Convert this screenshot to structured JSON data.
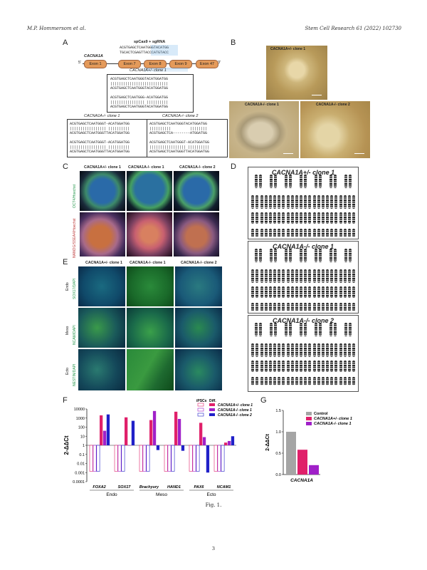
{
  "header": {
    "left": "M.P. Hommersom et al.",
    "right": "Stem Cell Research 61 (2022) 102730"
  },
  "panel_letters": {
    "a": "A",
    "b": "B",
    "c": "C",
    "d": "D",
    "e": "E",
    "f": "F",
    "g": "G"
  },
  "panel_a": {
    "sgrna_label": "spCas9 + sgRNA",
    "gene_label": "CACNA1A",
    "sgrna_seq_top": "ACGTGAGCTCAATGGGTACATGG",
    "sgrna_seq_bottom": "TGCACTCGAGTTACCCATGTACC",
    "five_prime": "5'",
    "three_prime": "3'",
    "exons": [
      "Exon 1",
      "Exon 7",
      "Exon 8",
      "Exon 9",
      "Exon 47"
    ],
    "het_title": "CACNA1A+/- clone 1",
    "het_lines": "ACGTGAGCTCAATGGGTACATGGATGG\n|||||||||||||||||||||||||||\nACGTGAGCTCAATGGGTACATGGATGG\n\nACGTGAGCTCAATGGG-ACATGGATGG\n|||||||||||||||| ||||||||||\nACGTGAGCTCAATGGGTACATGGATGG",
    "ko1_title": "CACNA1A-/- clone 1",
    "ko1_lines": "ACGTGAGCTCAATGGGT-ACATGGATGG\n||||||||||||||||| ||||||||||\nACGTGAGCTCAATGGGTTACATGGATGG\n\nACGTGAGCTCAATGGGT-ACATGGATGG\n||||||||||||||||| ||||||||||\nACGTGAGCTCAATGGGTTACATGGATGG",
    "ko2_title": "CACNA1A-/- clone 2",
    "ko2_lines": "ACGTGAGCTCAATGGGTACATGGATGG\n||||||||||         ||||||||\nACGTGAGCTCA--------ATGGATGG\n\nACGTGAGCTCAATGGGT-ACATGGATGG\n||||||||||||||||| ||||||||||\nACGTGAGCTCAATGGGTTACATGGATGG"
  },
  "panel_b": {
    "top_title": "CACNA1A+/- clone 1",
    "bl_title": "CACNA1A-/- clone 1",
    "br_title": "CACNA1A-/- clone 2"
  },
  "panel_c": {
    "cols": [
      "CACNA1A+/- clone 1",
      "CACNA1A-/- clone 1",
      "CACNA1A-/- clone 2"
    ],
    "rows": [
      "OCT4/Hoechst",
      "NANOG/SSEA4/Hoechst"
    ]
  },
  "panel_d": {
    "titles": [
      "CACNA1A+/- clone 1",
      "CACNA1A-/- clone 1",
      "CACNA1A-/- clone 2"
    ]
  },
  "panel_e": {
    "cols": [
      "CACNA1A+/- clone 1",
      "CACNA1A-/- clone 1",
      "CACNA1A-/- clone 2"
    ],
    "groups": [
      "Endo",
      "Meso",
      "Ecto"
    ],
    "rows": [
      "SOX17/DAPI",
      "NCAM/DAPI",
      "NESTIN/DAPI"
    ]
  },
  "colors": {
    "control": "#a5a5a5",
    "het": "#e0206a",
    "ko1": "#a020c8",
    "ko2": "#2020c8",
    "ipsc": "#ffffff"
  },
  "chart_data": [
    {
      "type": "bar",
      "ylabel": "2-ΔΔCt",
      "yscale": "log",
      "ylim": [
        0.0001,
        10000
      ],
      "yticks": [
        "10000",
        "1000",
        "100",
        "10",
        "1",
        "0.1",
        "0.01",
        "0.001",
        "0.0001"
      ],
      "legend_head": [
        "iPSCs",
        "Diff."
      ],
      "legend": [
        "CACNA1A+/- clone 1",
        "CACNA1A-/- clone 1",
        "CACNA1A-/- clone 2"
      ],
      "categories": [
        "FOXA2",
        "SOX17",
        "Brachyury",
        "HAND1",
        "PAX6",
        "NCAM1"
      ],
      "groups": [
        "Endo",
        "Meso",
        "Ecto"
      ],
      "series": [
        {
          "name": "CACNA1A+/- clone 1",
          "ipsc": [
            1,
            1,
            1,
            1,
            1,
            1
          ],
          "diff": [
            2000,
            1200,
            600,
            5000,
            300,
            2
          ]
        },
        {
          "name": "CACNA1A-/- clone 1",
          "ipsc": [
            1,
            1,
            1,
            1,
            1,
            1
          ],
          "diff": [
            40,
            1,
            6000,
            800,
            8,
            3
          ]
        },
        {
          "name": "CACNA1A-/- clone 2",
          "ipsc": [
            1,
            1,
            1,
            1,
            1,
            1
          ],
          "diff": [
            2500,
            500,
            0.3,
            0.25,
            0.001,
            10
          ]
        }
      ]
    },
    {
      "type": "bar",
      "ylabel": "2-ΔΔCt",
      "ylim": [
        0,
        1.5
      ],
      "yticks": [
        "1.5",
        "1.0",
        "0.5",
        "0.0"
      ],
      "xlabel": "CACNA1A",
      "legend": [
        "Control",
        "CACNA1A+/- clone 1",
        "CACNA1A-/- clone 1"
      ],
      "values": [
        1.0,
        0.58,
        0.22
      ]
    }
  ],
  "caption": "Fig. 1.",
  "page_number": "3"
}
